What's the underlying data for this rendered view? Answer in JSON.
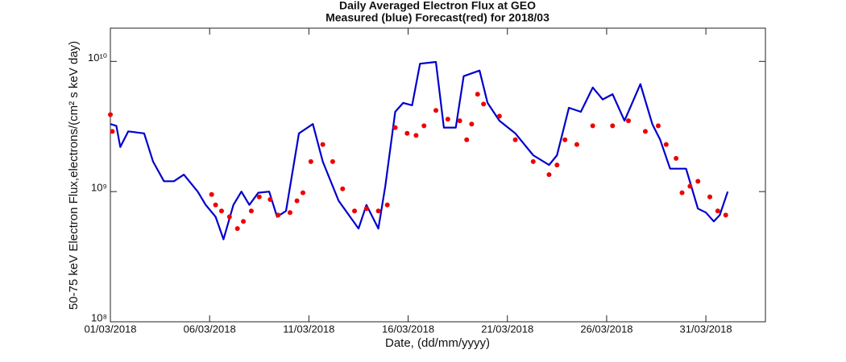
{
  "chart_data": {
    "type": "line",
    "title": "Daily Averaged Electron Flux at GEO",
    "subtitle": "Measured (blue) Forecast(red) for 2018/03",
    "x_label": "Date, (dd/mm/yyyy)",
    "y_label": "50-75 keV Electron Flux,electrons/(cm² s keV day)",
    "log_y": true,
    "xlim": [
      1,
      34
    ],
    "xticks": [
      {
        "value": 1,
        "label": "01/03/2018"
      },
      {
        "value": 6,
        "label": "06/03/2018"
      },
      {
        "value": 11,
        "label": "11/03/2018"
      },
      {
        "value": 16,
        "label": "16/03/2018"
      },
      {
        "value": 21,
        "label": "21/03/2018"
      },
      {
        "value": 26,
        "label": "26/03/2018"
      },
      {
        "value": 31,
        "label": "31/03/2018"
      }
    ],
    "ylim": [
      100000000,
      18000000000
    ],
    "yticks": [
      {
        "value": 100000000,
        "label": "10⁸"
      },
      {
        "value": 1000000000,
        "label": "10⁹"
      },
      {
        "value": 10000000000,
        "label": "10¹⁰"
      }
    ],
    "series": [
      {
        "name": "Measured",
        "color": "#0000cc",
        "style": "line",
        "x": [
          1.0,
          1.3,
          1.5,
          1.9,
          2.7,
          3.15,
          3.7,
          4.2,
          4.7,
          5.4,
          5.8,
          6.3,
          6.7,
          7.2,
          7.6,
          8.0,
          8.45,
          9.0,
          9.4,
          9.85,
          10.5,
          11.2,
          11.7,
          12.5,
          13.5,
          13.9,
          14.5,
          14.85,
          15.35,
          15.75,
          16.2,
          16.6,
          17.4,
          17.8,
          18.4,
          18.8,
          19.6,
          20.0,
          20.6,
          21.4,
          22.3,
          23.1,
          23.5,
          24.1,
          24.7,
          25.3,
          25.8,
          26.3,
          26.9,
          27.7,
          28.3,
          28.7,
          29.2,
          30.0,
          30.6,
          31.0,
          31.4,
          31.7,
          32.1
        ],
        "values": [
          3300000000,
          3200000000,
          2200000000,
          2900000000,
          2800000000,
          1700000000,
          1200000000,
          1200000000,
          1350000000,
          1000000000,
          790000000,
          640000000,
          430000000,
          790000000,
          1000000000,
          790000000,
          980000000,
          1000000000,
          640000000,
          710000000,
          2800000000,
          3300000000,
          1700000000,
          850000000,
          520000000,
          790000000,
          520000000,
          1100000000,
          4100000000,
          4800000000,
          4600000000,
          9600000000,
          9900000000,
          3100000000,
          3100000000,
          7700000000,
          8500000000,
          4800000000,
          3500000000,
          2800000000,
          1900000000,
          1600000000,
          1900000000,
          4400000000,
          4100000000,
          6300000000,
          5100000000,
          5600000000,
          3500000000,
          6700000000,
          3300000000,
          2500000000,
          1500000000,
          1500000000,
          740000000,
          690000000,
          590000000,
          660000000,
          1000000000
        ]
      },
      {
        "name": "Forecast",
        "color": "#ee0000",
        "style": "dots",
        "x": [
          1.0,
          1.1,
          6.1,
          6.3,
          6.6,
          7.0,
          7.4,
          7.7,
          8.1,
          8.5,
          9.05,
          9.45,
          10.05,
          10.4,
          10.7,
          11.1,
          11.7,
          12.2,
          12.7,
          13.3,
          13.9,
          14.5,
          14.95,
          15.35,
          15.95,
          16.4,
          16.8,
          17.4,
          18.0,
          18.6,
          18.95,
          19.2,
          19.5,
          19.8,
          20.6,
          21.4,
          22.3,
          23.1,
          23.5,
          23.9,
          24.5,
          25.3,
          26.3,
          27.1,
          27.95,
          28.6,
          29.0,
          29.5,
          29.8,
          30.2,
          30.6,
          31.2,
          31.6,
          32.0
        ],
        "values": [
          3900000000,
          2900000000,
          950000000,
          790000000,
          710000000,
          640000000,
          520000000,
          590000000,
          710000000,
          910000000,
          870000000,
          660000000,
          690000000,
          850000000,
          980000000,
          1700000000,
          2300000000,
          1700000000,
          1050000000,
          710000000,
          740000000,
          710000000,
          790000000,
          3100000000,
          2800000000,
          2700000000,
          3200000000,
          4200000000,
          3600000000,
          3500000000,
          2500000000,
          3300000000,
          5600000000,
          4700000000,
          3800000000,
          2500000000,
          1700000000,
          1350000000,
          1600000000,
          2500000000,
          2300000000,
          3200000000,
          3200000000,
          3500000000,
          2900000000,
          3200000000,
          2300000000,
          1800000000,
          980000000,
          1100000000,
          1200000000,
          910000000,
          710000000,
          660000000
        ]
      }
    ]
  }
}
